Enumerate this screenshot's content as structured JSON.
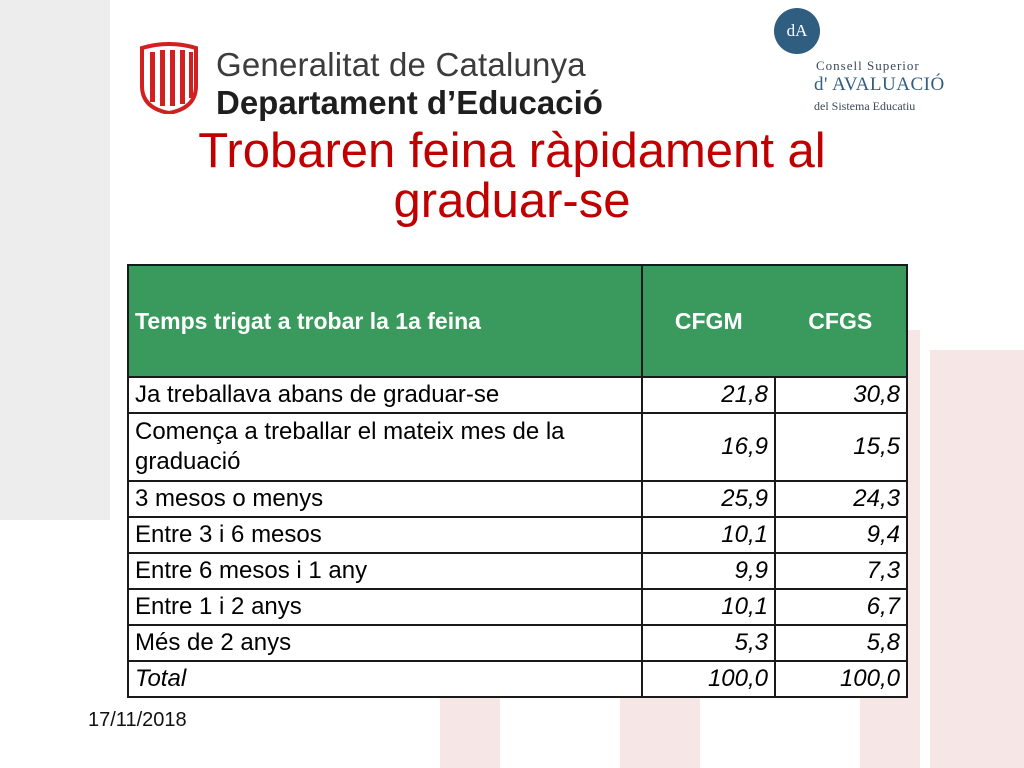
{
  "header": {
    "org_line1": "Generalitat de Catalunya",
    "org_line2": "Departament d’Educació",
    "org_logo_icon": "generalitat-emblem-icon",
    "council_badge": "dA",
    "council_line1": "Consell Superior",
    "council_line2": "d' AVALUACIÓ",
    "council_line3": "del Sistema Educatiu"
  },
  "title": "Trobaren feina ràpidament al graduar-se",
  "table": {
    "header_label": "Temps trigat a trobar la 1a feina",
    "col1": "CFGM",
    "col2": "CFGS",
    "rows": [
      {
        "label": "Ja treballava abans de graduar-se",
        "cfgm": "21,8",
        "cfgs": "30,8"
      },
      {
        "label": "Comença a treballar el mateix mes de la graduació",
        "cfgm": "16,9",
        "cfgs": "15,5"
      },
      {
        "label": "3 mesos o menys",
        "cfgm": "25,9",
        "cfgs": "24,3"
      },
      {
        "label": "Entre 3 i 6 mesos",
        "cfgm": "10,1",
        "cfgs": "9,4"
      },
      {
        "label": "Entre 6 mesos i 1 any",
        "cfgm": "9,9",
        "cfgs": "7,3"
      },
      {
        "label": "Entre 1 i 2 anys",
        "cfgm": "10,1",
        "cfgs": "6,7"
      },
      {
        "label": "Més de 2 anys",
        "cfgm": "5,3",
        "cfgs": "5,8"
      },
      {
        "label": "Total",
        "cfgm": "100,0",
        "cfgs": "100,0"
      }
    ]
  },
  "footer": {
    "date": "17/11/2018"
  },
  "colors": {
    "title": "#c00000",
    "header_bg": "#3a9a5e",
    "council_blue": "#2f5e80"
  }
}
